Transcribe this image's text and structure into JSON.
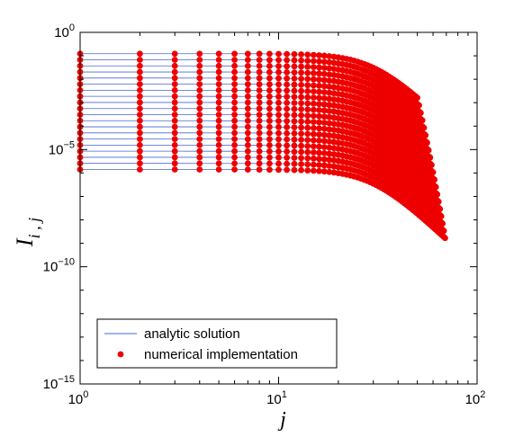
{
  "chart_data": {
    "type": "line",
    "xscale": "log",
    "yscale": "log",
    "xlim": [
      1,
      100
    ],
    "ylim": [
      1e-15,
      1
    ],
    "xticks": [
      {
        "base": "10",
        "exp": "0",
        "value": 1
      },
      {
        "base": "10",
        "exp": "1",
        "value": 10
      },
      {
        "base": "10",
        "exp": "2",
        "value": 100
      }
    ],
    "yticks": [
      {
        "base": "10",
        "exp": "0",
        "value": 1
      },
      {
        "base": "10",
        "exp": "−5",
        "value": 1e-05
      },
      {
        "base": "10",
        "exp": "−10",
        "value": 1e-10
      },
      {
        "base": "10",
        "exp": "−15",
        "value": 1e-15
      }
    ],
    "xlabel": "j",
    "ylabel_main": "I",
    "ylabel_sub": "i , j",
    "grid": false,
    "legend": {
      "placement": "lower-left",
      "entries": [
        {
          "label": "analytic solution",
          "style": "line",
          "color": "#4a63d8"
        },
        {
          "label": "numerical implementation",
          "style": "marker",
          "color": "#ee0000"
        }
      ]
    },
    "series_model": {
      "description_units": "value(i, j) = a_i / (1 + (j/30)^4)^2 for j = 1..j_max",
      "i_count": 20,
      "log10_a_first": -0.91,
      "log10_a_last": -5.85,
      "x_start": 1,
      "x_end_first": 50,
      "x_end_step": 1,
      "decay_scale": 30,
      "decay_power": 4,
      "decay_exponent": 2
    },
    "colors": {
      "line": "#4a63d8",
      "marker": "#ee0000",
      "axis": "#000000"
    }
  }
}
